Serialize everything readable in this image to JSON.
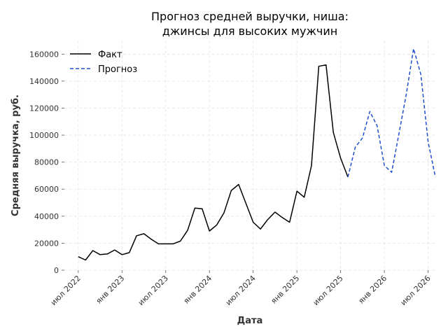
{
  "chart_data": {
    "type": "line",
    "title_lines": [
      "Прогноз средней выручки, ниша:",
      "джинсы для высоких мужчин"
    ],
    "xlabel": "Дата",
    "ylabel": "Средняя выручка, руб.",
    "ylim": [
      0,
      170000
    ],
    "y_ticks": [
      0,
      20000,
      40000,
      60000,
      80000,
      100000,
      120000,
      140000,
      160000
    ],
    "x_ticks": [
      {
        "x": "2022-07",
        "label": "июл 2022"
      },
      {
        "x": "2023-01",
        "label": "янв 2023"
      },
      {
        "x": "2023-07",
        "label": "июл 2023"
      },
      {
        "x": "2024-01",
        "label": "янв 2024"
      },
      {
        "x": "2024-07",
        "label": "июл 2024"
      },
      {
        "x": "2025-01",
        "label": "янв 2025"
      },
      {
        "x": "2025-07",
        "label": "июл 2025"
      },
      {
        "x": "2026-01",
        "label": "янв 2026"
      },
      {
        "x": "2026-07",
        "label": "июл 2026"
      }
    ],
    "grid": true,
    "legend_position": "top-left",
    "series": [
      {
        "name": "Факт",
        "style": "solid",
        "color": "#000000",
        "x": [
          "2022-07",
          "2022-08",
          "2022-09",
          "2022-10",
          "2022-11",
          "2022-12",
          "2023-01",
          "2023-02",
          "2023-03",
          "2023-04",
          "2023-05",
          "2023-06",
          "2023-07",
          "2023-08",
          "2023-09",
          "2023-10",
          "2023-11",
          "2023-12",
          "2024-01",
          "2024-02",
          "2024-03",
          "2024-04",
          "2024-05",
          "2024-06",
          "2024-07",
          "2024-08",
          "2024-09",
          "2024-10",
          "2024-11",
          "2024-12",
          "2025-01",
          "2025-02",
          "2025-03",
          "2025-04",
          "2025-05",
          "2025-06",
          "2025-07",
          "2025-08"
        ],
        "y": [
          10000,
          7500,
          14500,
          11500,
          12000,
          15000,
          11500,
          13000,
          25500,
          27000,
          23000,
          19500,
          19500,
          19500,
          21500,
          29500,
          46000,
          45500,
          29000,
          33500,
          42500,
          59000,
          63500,
          49500,
          35500,
          30500,
          37500,
          43000,
          39000,
          35500,
          58500,
          54000,
          77500,
          151000,
          152000,
          102000,
          83000,
          69000
        ]
      },
      {
        "name": "Прогноз",
        "style": "dashed",
        "color": "#1f4fc9",
        "x": [
          "2025-08",
          "2025-09",
          "2025-10",
          "2025-11",
          "2025-12",
          "2026-01",
          "2026-02",
          "2026-03",
          "2026-04",
          "2026-05",
          "2026-06",
          "2026-07",
          "2026-08"
        ],
        "y": [
          69000,
          91000,
          98000,
          117500,
          107000,
          77500,
          72500,
          101000,
          130000,
          164000,
          145000,
          95000,
          69000
        ]
      }
    ]
  }
}
